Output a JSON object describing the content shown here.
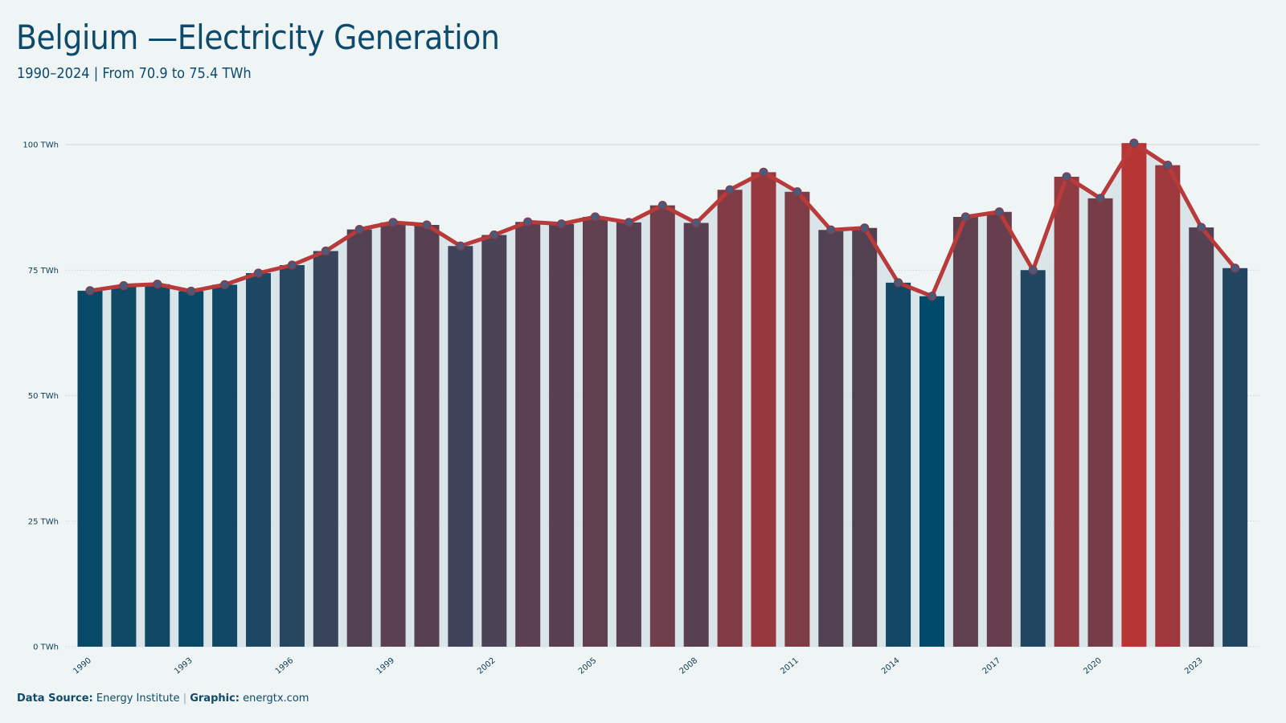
{
  "header": {
    "title": "Belgium —Electricity Generation",
    "subtitle": "1990–2024 | From 70.9 to 75.4 TWh"
  },
  "footer": {
    "source_label": "Data Source:",
    "source_value": "Energy Institute",
    "separator": "|",
    "graphic_label": "Graphic:",
    "graphic_value": "energtx.com"
  },
  "colors": {
    "background": "#eff5f5",
    "line": "#b83a3a",
    "low": "#024a6a",
    "high": "#b83535",
    "area": "#d6e2e6"
  },
  "chart_data": {
    "type": "bar",
    "unit": "TWh",
    "ylim": [
      0,
      100
    ],
    "yticks": [
      0,
      25,
      50,
      75,
      100
    ],
    "ytick_labels": [
      "0 TWh",
      "25 TWh",
      "50 TWh",
      "75 TWh",
      "100 TWh"
    ],
    "xtick_labels": [
      "1990",
      "1993",
      "1996",
      "1999",
      "2002",
      "2005",
      "2008",
      "2011",
      "2014",
      "2017",
      "2020",
      "2023"
    ],
    "grid": true,
    "legend": "none",
    "categories": [
      "1990",
      "1991",
      "1992",
      "1993",
      "1994",
      "1995",
      "1996",
      "1997",
      "1998",
      "1999",
      "2000",
      "2001",
      "2002",
      "2003",
      "2004",
      "2005",
      "2006",
      "2007",
      "2008",
      "2009",
      "2010",
      "2011",
      "2012",
      "2013",
      "2014",
      "2015",
      "2016",
      "2017",
      "2018",
      "2019",
      "2020",
      "2021",
      "2022",
      "2023",
      "2024"
    ],
    "values": [
      70.9,
      71.9,
      72.2,
      70.8,
      72.1,
      74.4,
      76.0,
      78.8,
      83.1,
      84.5,
      84.0,
      79.8,
      82.0,
      84.6,
      84.2,
      85.6,
      84.5,
      87.9,
      84.4,
      91.0,
      94.5,
      90.6,
      83.0,
      83.4,
      72.5,
      69.8,
      85.6,
      86.6,
      75.0,
      93.6,
      89.3,
      100.3,
      95.9,
      83.5,
      75.4
    ]
  }
}
